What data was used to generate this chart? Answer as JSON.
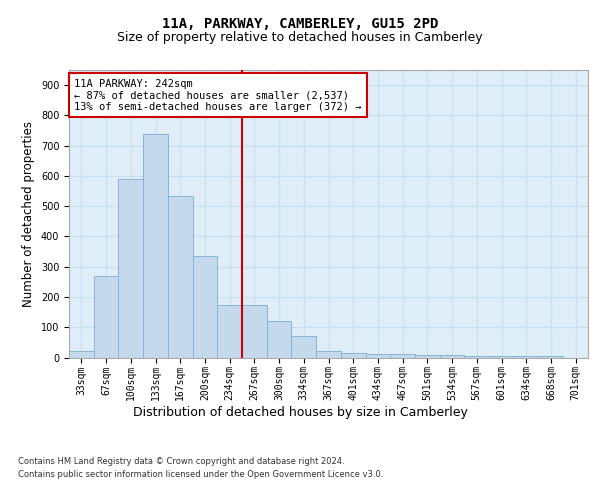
{
  "title1": "11A, PARKWAY, CAMBERLEY, GU15 2PD",
  "title2": "Size of property relative to detached houses in Camberley",
  "xlabel": "Distribution of detached houses by size in Camberley",
  "ylabel": "Number of detached properties",
  "categories": [
    "33sqm",
    "67sqm",
    "100sqm",
    "133sqm",
    "167sqm",
    "200sqm",
    "234sqm",
    "267sqm",
    "300sqm",
    "334sqm",
    "367sqm",
    "401sqm",
    "434sqm",
    "467sqm",
    "501sqm",
    "534sqm",
    "567sqm",
    "601sqm",
    "634sqm",
    "668sqm",
    "701sqm"
  ],
  "values": [
    20,
    270,
    590,
    740,
    535,
    335,
    175,
    175,
    120,
    70,
    22,
    15,
    12,
    12,
    7,
    7,
    5,
    5,
    5,
    5,
    0
  ],
  "bar_color": "#c5d9ed",
  "bar_edge_color": "#8ab4d4",
  "grid_color": "#c8dff0",
  "bg_color": "#deedf8",
  "vline_x": 6.5,
  "vline_color": "#cc0000",
  "annotation_text": "11A PARKWAY: 242sqm\n← 87% of detached houses are smaller (2,537)\n13% of semi-detached houses are larger (372) →",
  "annotation_box_color": "#cc0000",
  "ylim": [
    0,
    950
  ],
  "yticks": [
    0,
    100,
    200,
    300,
    400,
    500,
    600,
    700,
    800,
    900
  ],
  "footnote1": "Contains HM Land Registry data © Crown copyright and database right 2024.",
  "footnote2": "Contains public sector information licensed under the Open Government Licence v3.0.",
  "title1_fontsize": 10,
  "title2_fontsize": 9,
  "tick_fontsize": 7,
  "ylabel_fontsize": 8.5,
  "xlabel_fontsize": 9,
  "annot_fontsize": 7.5,
  "footnote_fontsize": 6
}
